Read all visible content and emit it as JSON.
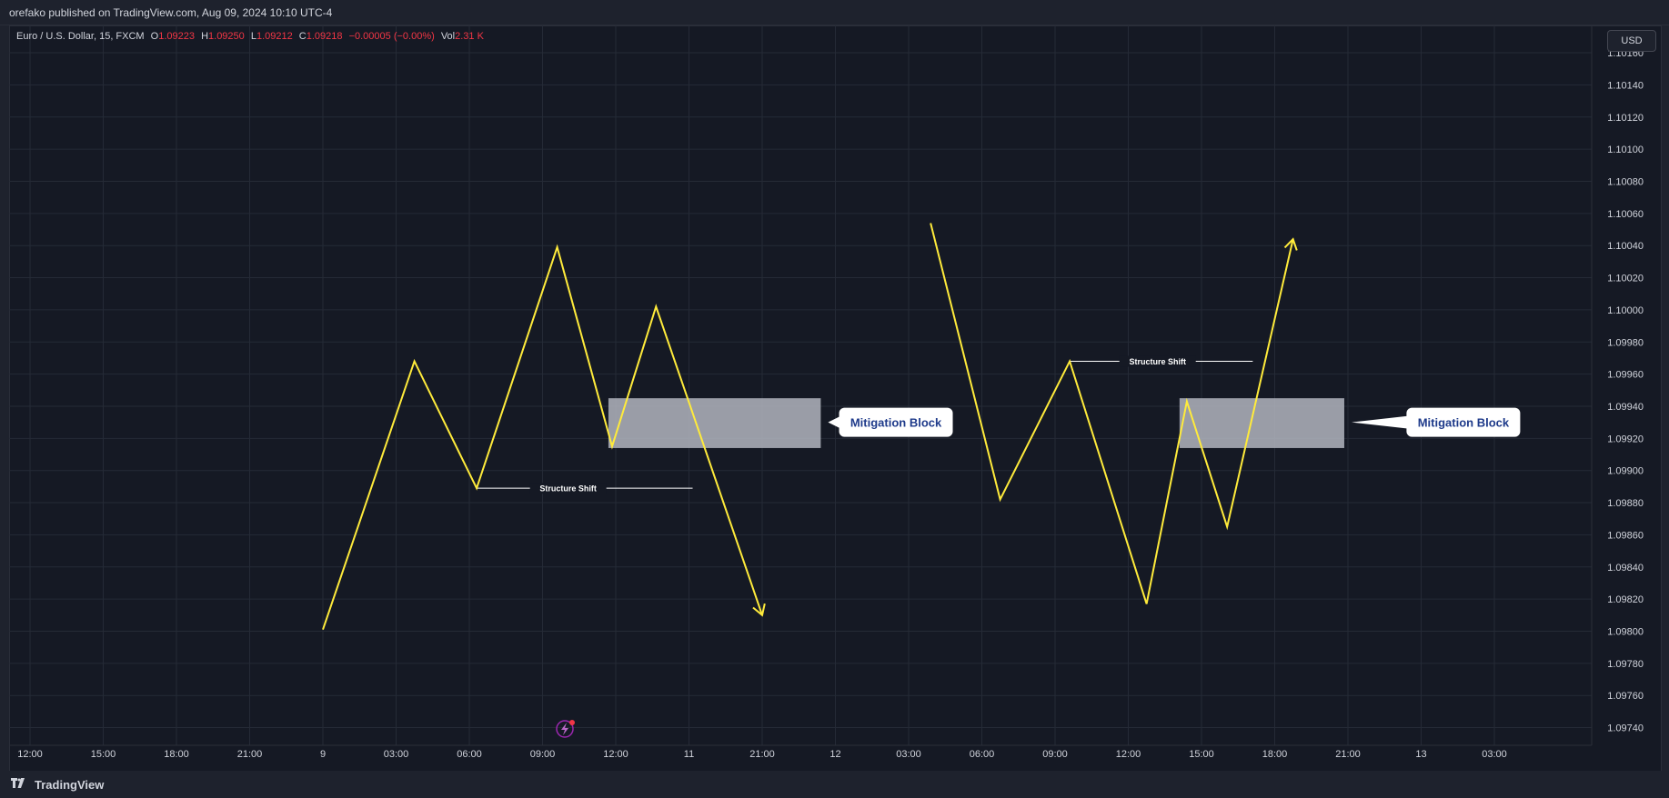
{
  "header": {
    "publish_text": "orefako published on TradingView.com, Aug 09, 2024 10:10 UTC-4"
  },
  "legend": {
    "symbol": "Euro / U.S. Dollar, 15, FXCM",
    "o_label": "O",
    "o_value": "1.09223",
    "h_label": "H",
    "h_value": "1.09250",
    "l_label": "L",
    "l_value": "1.09212",
    "c_label": "C",
    "c_value": "1.09218",
    "change": "−0.00005 (−0.00%)",
    "vol_label": "Vol",
    "vol_value": "2.31 K"
  },
  "currency": "USD",
  "brand": "TradingView",
  "colors": {
    "line": "#ffeb3b",
    "block_fill": "#b2b5be",
    "down": "#f23645",
    "callout_bg": "#ffffff",
    "callout_text": "#1e3a8a"
  },
  "chart_data": {
    "type": "line",
    "y_axis": {
      "ticks": [
        1.1016,
        1.1014,
        1.1012,
        1.101,
        1.1008,
        1.1006,
        1.1004,
        1.1002,
        1.1,
        1.0998,
        1.0996,
        1.0994,
        1.0992,
        1.099,
        1.0988,
        1.0986,
        1.0984,
        1.0982,
        1.098,
        1.0978,
        1.0976,
        1.0974
      ],
      "tick_labels": [
        "1.10160",
        "1.10140",
        "1.10120",
        "1.10100",
        "1.10080",
        "1.10060",
        "1.10040",
        "1.10020",
        "1.10000",
        "1.09980",
        "1.09960",
        "1.09940",
        "1.09920",
        "1.09900",
        "1.09880",
        "1.09860",
        "1.09840",
        "1.09820",
        "1.09800",
        "1.09780",
        "1.09760",
        "1.09740"
      ],
      "range": [
        1.09729,
        1.10177
      ]
    },
    "x_axis": {
      "tick_labels": [
        "12:00",
        "15:00",
        "18:00",
        "21:00",
        "9",
        "03:00",
        "06:00",
        "09:00",
        "12:00",
        "11",
        "21:00",
        "12",
        "03:00",
        "06:00",
        "09:00",
        "12:00",
        "15:00",
        "18:00",
        "21:00",
        "13",
        "03:00"
      ],
      "tick_index": [
        0,
        1,
        2,
        3,
        4,
        5,
        6,
        7,
        8,
        9,
        10,
        11,
        12,
        13,
        14,
        15,
        16,
        17,
        18,
        19,
        20
      ]
    },
    "drawings": [
      {
        "kind": "path",
        "name": "left-zigzag",
        "points": [
          [
            4.0,
            1.09801
          ],
          [
            5.25,
            1.09968
          ],
          [
            6.1,
            1.09889
          ],
          [
            7.2,
            1.10039
          ],
          [
            7.95,
            1.09915
          ],
          [
            8.55,
            1.10002
          ],
          [
            10.0,
            1.0981
          ]
        ],
        "arrow": "down"
      },
      {
        "kind": "path",
        "name": "right-zigzag",
        "points": [
          [
            12.3,
            1.10054
          ],
          [
            13.25,
            1.09882
          ],
          [
            14.2,
            1.09968
          ],
          [
            15.25,
            1.09817
          ],
          [
            15.8,
            1.09943
          ],
          [
            16.35,
            1.09865
          ],
          [
            17.25,
            1.10044
          ]
        ],
        "arrow": "up"
      },
      {
        "kind": "box",
        "name": "left-mitigation-block",
        "x0": 7.9,
        "x1": 10.8,
        "y_top": 1.09945,
        "y_bottom": 1.09914
      },
      {
        "kind": "box",
        "name": "right-mitigation-block",
        "x0": 15.7,
        "x1": 17.95,
        "y_top": 1.09945,
        "y_bottom": 1.09914
      },
      {
        "kind": "hline",
        "name": "left-structure-shift",
        "x0": 6.1,
        "x1": 9.05,
        "y": 1.09889,
        "label": "Structure Shift",
        "label_x": 7.35
      },
      {
        "kind": "hline",
        "name": "right-structure-shift",
        "x0": 14.2,
        "x1": 16.7,
        "y": 1.09968,
        "label": "Structure Shift",
        "label_x": 15.4
      }
    ],
    "callouts": [
      {
        "name": "left-callout",
        "text": "Mitigation Block",
        "anchor_x": 10.8,
        "y": 1.0993,
        "box_x": 11.05
      },
      {
        "name": "right-callout",
        "text": "Mitigation Block",
        "anchor_x": 17.95,
        "y": 1.0993,
        "box_x": 18.8
      }
    ]
  }
}
